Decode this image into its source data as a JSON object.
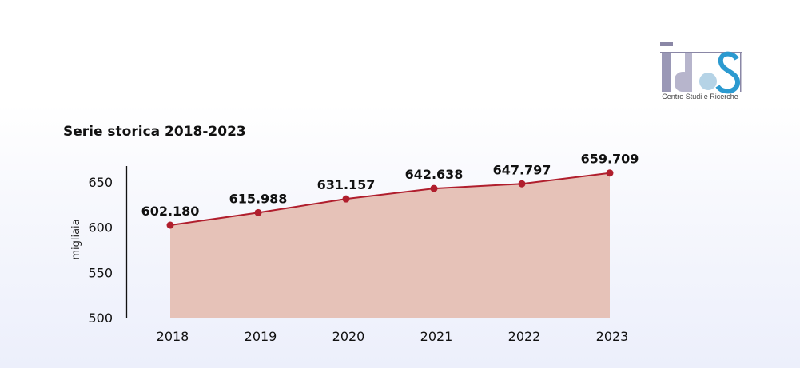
{
  "logo": {
    "text": "IDOS",
    "subtitle": "Centro Studi e Ricerche"
  },
  "chart_data": {
    "type": "area",
    "title": "Serie storica 2018-2023",
    "xlabel": "",
    "ylabel": "migliaia",
    "categories": [
      "2018",
      "2019",
      "2020",
      "2021",
      "2022",
      "2023"
    ],
    "values": [
      602.18,
      615.988,
      631.157,
      642.638,
      647.797,
      659.709
    ],
    "data_labels": [
      "602.180",
      "615.988",
      "631.157",
      "642.638",
      "647.797",
      "659.709"
    ],
    "ylim": [
      500,
      660
    ],
    "yticks": [
      500,
      550,
      600,
      650
    ],
    "grid": false,
    "colors": {
      "line": "#b01e2d",
      "fill": "#e6c2b8",
      "marker": "#b01e2d"
    }
  }
}
